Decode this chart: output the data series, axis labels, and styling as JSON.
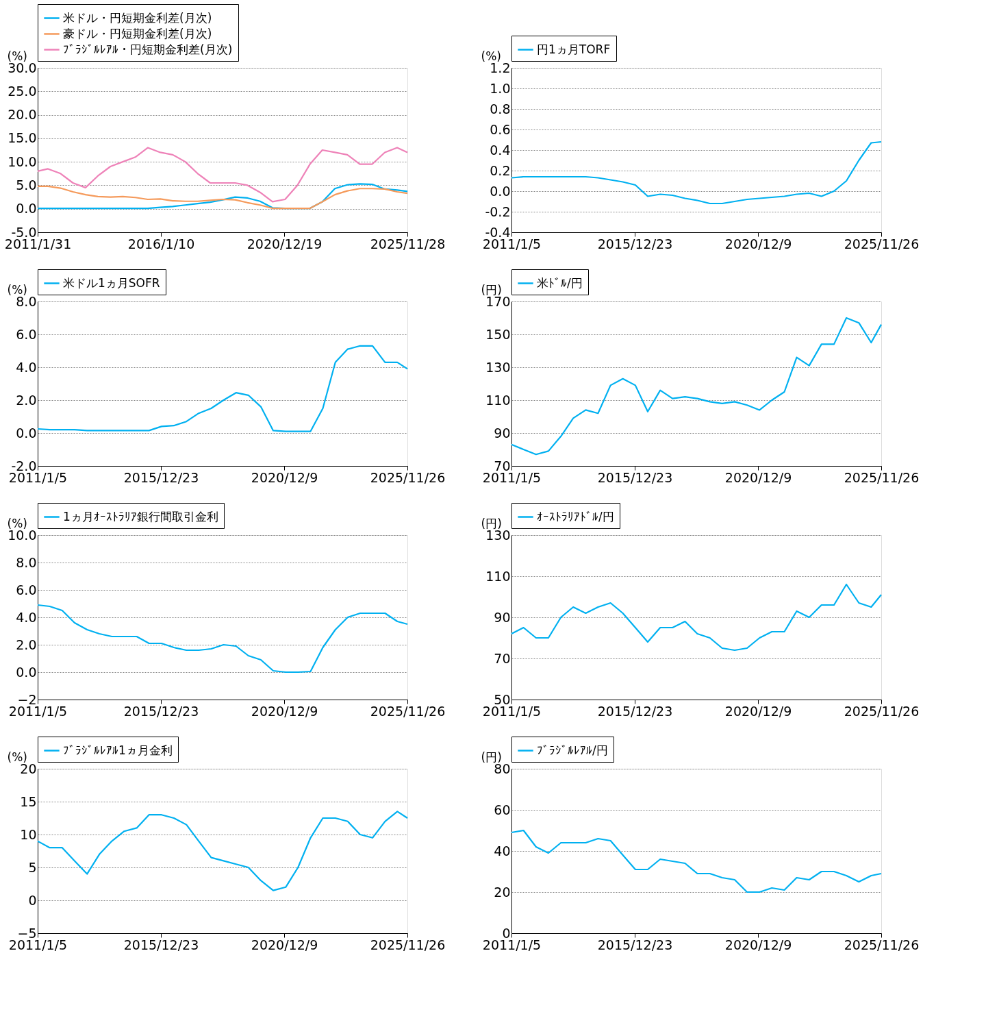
{
  "chart_data": [
    {
      "type": "line",
      "ylabel": "(%)",
      "legend": "top",
      "grid": "y",
      "line_style": "solid",
      "x": [
        "2011-01-31",
        "2011-07-01",
        "2012-01-01",
        "2012-07-01",
        "2013-01-01",
        "2013-07-01",
        "2014-01-01",
        "2014-07-01",
        "2015-01-01",
        "2015-07-01",
        "2016-01-01",
        "2016-07-01",
        "2017-01-01",
        "2017-07-01",
        "2018-01-01",
        "2018-07-01",
        "2019-01-01",
        "2019-07-01",
        "2020-01-01",
        "2020-07-01",
        "2021-01-01",
        "2021-07-01",
        "2022-01-01",
        "2022-07-01",
        "2023-01-01",
        "2023-07-01",
        "2024-01-01",
        "2024-07-01",
        "2025-01-01",
        "2025-07-01",
        "2025-11-28"
      ],
      "xlim": [
        "2011-01-31",
        "2025-11-28"
      ],
      "xticks": [
        {
          "value": "2011-01-31",
          "label": "2011/1/31"
        },
        {
          "value": "2016-01-10",
          "label": "2016/1/10"
        },
        {
          "value": "2020-12-19",
          "label": "2020/12/19"
        },
        {
          "value": "2025-11-28",
          "label": "2025/11/28"
        }
      ],
      "ylim": [
        -5,
        30
      ],
      "yticks": [
        {
          "value": -5,
          "label": "-5.0"
        },
        {
          "value": 0,
          "label": "0.0"
        },
        {
          "value": 5,
          "label": "5.0"
        },
        {
          "value": 10,
          "label": "10.0"
        },
        {
          "value": 15,
          "label": "15.0"
        },
        {
          "value": 20,
          "label": "20.0"
        },
        {
          "value": 25,
          "label": "25.0"
        },
        {
          "value": 30,
          "label": "30.0"
        }
      ],
      "series": [
        {
          "name": "米ドル・円短期金利差(月次)",
          "color": "#00b0f0",
          "values": [
            0.1,
            0.1,
            0.1,
            0.1,
            0.1,
            0.1,
            0.1,
            0.1,
            0.1,
            0.1,
            0.3,
            0.5,
            0.8,
            1.1,
            1.4,
            1.9,
            2.5,
            2.3,
            1.6,
            0.2,
            0.1,
            0.1,
            0.1,
            1.5,
            4.3,
            5.1,
            5.3,
            5.2,
            4.2,
            4.0,
            3.7
          ]
        },
        {
          "name": "豪ドル・円短期金利差(月次)",
          "color": "#f59a5b",
          "values": [
            4.8,
            4.8,
            4.4,
            3.6,
            3.0,
            2.6,
            2.5,
            2.6,
            2.4,
            2.0,
            2.1,
            1.7,
            1.6,
            1.6,
            1.8,
            2.0,
            1.9,
            1.3,
            0.8,
            0.1,
            0.1,
            0.1,
            0.1,
            1.5,
            3.0,
            3.8,
            4.3,
            4.3,
            4.2,
            3.6,
            3.3
          ]
        },
        {
          "name": "ﾌﾞﾗｼﾞﾙﾚｱﾙ・円短期金利差(月次)",
          "color": "#ee82b8",
          "values": [
            8.0,
            8.5,
            7.5,
            5.5,
            4.5,
            7.0,
            9.0,
            10.0,
            11.0,
            13.0,
            12.0,
            11.5,
            10.0,
            7.5,
            5.5,
            5.5,
            5.5,
            5.0,
            3.5,
            1.5,
            2.0,
            5.0,
            9.5,
            12.5,
            12.0,
            11.5,
            9.5,
            9.5,
            12.0,
            13.0,
            12.0
          ]
        }
      ]
    },
    {
      "type": "line",
      "ylabel": "(%)",
      "legend": "top",
      "grid": "y",
      "line_style": "solid",
      "x": [
        "2011-01-05",
        "2011-07-01",
        "2012-01-01",
        "2012-07-01",
        "2013-01-01",
        "2013-07-01",
        "2014-01-01",
        "2014-07-01",
        "2015-01-01",
        "2015-07-01",
        "2016-01-01",
        "2016-07-01",
        "2017-01-01",
        "2017-07-01",
        "2018-01-01",
        "2018-07-01",
        "2019-01-01",
        "2019-07-01",
        "2020-01-01",
        "2020-07-01",
        "2021-01-01",
        "2021-07-01",
        "2022-01-01",
        "2022-07-01",
        "2023-01-01",
        "2023-07-01",
        "2024-01-01",
        "2024-07-01",
        "2025-01-01",
        "2025-07-01",
        "2025-11-26"
      ],
      "xlim": [
        "2011-01-05",
        "2025-11-26"
      ],
      "xticks": [
        {
          "value": "2011-01-05",
          "label": "2011/1/5"
        },
        {
          "value": "2015-12-23",
          "label": "2015/12/23"
        },
        {
          "value": "2020-12-09",
          "label": "2020/12/9"
        },
        {
          "value": "2025-11-26",
          "label": "2025/11/26"
        }
      ],
      "ylim": [
        -0.4,
        1.2
      ],
      "yticks": [
        {
          "value": -0.4,
          "label": "-0.4"
        },
        {
          "value": -0.2,
          "label": "-0.2"
        },
        {
          "value": 0,
          "label": "0.0"
        },
        {
          "value": 0.2,
          "label": "0.2"
        },
        {
          "value": 0.4,
          "label": "0.4"
        },
        {
          "value": 0.6,
          "label": "0.6"
        },
        {
          "value": 0.8,
          "label": "0.8"
        },
        {
          "value": 1.0,
          "label": "1.0"
        },
        {
          "value": 1.2,
          "label": "1.2"
        }
      ],
      "series": [
        {
          "name": "円1ヵ月TORF",
          "color": "#00b0f0",
          "values": [
            0.13,
            0.14,
            0.14,
            0.14,
            0.14,
            0.14,
            0.14,
            0.13,
            0.11,
            0.09,
            0.06,
            -0.05,
            -0.03,
            -0.04,
            -0.07,
            -0.09,
            -0.12,
            -0.12,
            -0.1,
            -0.08,
            -0.07,
            -0.06,
            -0.05,
            -0.03,
            -0.02,
            -0.05,
            0.0,
            0.1,
            0.3,
            0.47,
            0.48
          ]
        }
      ]
    },
    {
      "type": "line",
      "ylabel": "(%)",
      "legend": "top",
      "grid": "y",
      "line_style": "solid",
      "x": [
        "2011-01-05",
        "2011-07-01",
        "2012-01-01",
        "2012-07-01",
        "2013-01-01",
        "2013-07-01",
        "2014-01-01",
        "2014-07-01",
        "2015-01-01",
        "2015-07-01",
        "2016-01-01",
        "2016-07-01",
        "2017-01-01",
        "2017-07-01",
        "2018-01-01",
        "2018-07-01",
        "2019-01-01",
        "2019-07-01",
        "2020-01-01",
        "2020-07-01",
        "2021-01-01",
        "2021-07-01",
        "2022-01-01",
        "2022-07-01",
        "2023-01-01",
        "2023-07-01",
        "2024-01-01",
        "2024-07-01",
        "2025-01-01",
        "2025-07-01",
        "2025-11-26"
      ],
      "xlim": [
        "2011-01-05",
        "2025-11-26"
      ],
      "xticks": [
        {
          "value": "2011-01-05",
          "label": "2011/1/5"
        },
        {
          "value": "2015-12-23",
          "label": "2015/12/23"
        },
        {
          "value": "2020-12-09",
          "label": "2020/12/9"
        },
        {
          "value": "2025-11-26",
          "label": "2025/11/26"
        }
      ],
      "ylim": [
        -2,
        8
      ],
      "yticks": [
        {
          "value": -2,
          "label": "-2.0"
        },
        {
          "value": 0,
          "label": "0.0"
        },
        {
          "value": 2,
          "label": "2.0"
        },
        {
          "value": 4,
          "label": "4.0"
        },
        {
          "value": 6,
          "label": "6.0"
        },
        {
          "value": 8,
          "label": "8.0"
        }
      ],
      "series": [
        {
          "name": "米ドル1ヵ月SOFR",
          "color": "#00b0f0",
          "values": [
            0.25,
            0.2,
            0.2,
            0.2,
            0.15,
            0.15,
            0.15,
            0.15,
            0.15,
            0.15,
            0.4,
            0.45,
            0.7,
            1.2,
            1.5,
            2.0,
            2.45,
            2.3,
            1.6,
            0.15,
            0.1,
            0.1,
            0.1,
            1.5,
            4.3,
            5.1,
            5.3,
            5.3,
            4.3,
            4.3,
            3.9
          ]
        }
      ]
    },
    {
      "type": "line",
      "ylabel": "(円)",
      "legend": "top",
      "grid": "y",
      "line_style": "solid",
      "x": [
        "2011-01-05",
        "2011-07-01",
        "2012-01-01",
        "2012-07-01",
        "2013-01-01",
        "2013-07-01",
        "2014-01-01",
        "2014-07-01",
        "2015-01-01",
        "2015-07-01",
        "2016-01-01",
        "2016-07-01",
        "2017-01-01",
        "2017-07-01",
        "2018-01-01",
        "2018-07-01",
        "2019-01-01",
        "2019-07-01",
        "2020-01-01",
        "2020-07-01",
        "2021-01-01",
        "2021-07-01",
        "2022-01-01",
        "2022-07-01",
        "2023-01-01",
        "2023-07-01",
        "2024-01-01",
        "2024-07-01",
        "2025-01-01",
        "2025-07-01",
        "2025-11-26"
      ],
      "xlim": [
        "2011-01-05",
        "2025-11-26"
      ],
      "xticks": [
        {
          "value": "2011-01-05",
          "label": "2011/1/5"
        },
        {
          "value": "2015-12-23",
          "label": "2015/12/23"
        },
        {
          "value": "2020-12-09",
          "label": "2020/12/9"
        },
        {
          "value": "2025-11-26",
          "label": "2025/11/26"
        }
      ],
      "ylim": [
        70,
        170
      ],
      "yticks": [
        70,
        90,
        110,
        130,
        150,
        170
      ],
      "series": [
        {
          "name": "米ﾄﾞﾙ/円",
          "color": "#00b0f0",
          "values": [
            83,
            80,
            77,
            79,
            88,
            99,
            104,
            102,
            119,
            123,
            119,
            103,
            116,
            111,
            112,
            111,
            109,
            108,
            109,
            107,
            104,
            110,
            115,
            136,
            131,
            144,
            144,
            160,
            157,
            145,
            156
          ]
        }
      ]
    },
    {
      "type": "line",
      "ylabel": "(%)",
      "legend": "top",
      "grid": "y",
      "line_style": "solid",
      "x": [
        "2011-01-05",
        "2011-07-01",
        "2012-01-01",
        "2012-07-01",
        "2013-01-01",
        "2013-07-01",
        "2014-01-01",
        "2014-07-01",
        "2015-01-01",
        "2015-07-01",
        "2016-01-01",
        "2016-07-01",
        "2017-01-01",
        "2017-07-01",
        "2018-01-01",
        "2018-07-01",
        "2019-01-01",
        "2019-07-01",
        "2020-01-01",
        "2020-07-01",
        "2021-01-01",
        "2021-07-01",
        "2022-01-01",
        "2022-07-01",
        "2023-01-01",
        "2023-07-01",
        "2024-01-01",
        "2024-07-01",
        "2025-01-01",
        "2025-07-01",
        "2025-11-26"
      ],
      "xlim": [
        "2011-01-05",
        "2025-11-26"
      ],
      "xticks": [
        {
          "value": "2011-01-05",
          "label": "2011/1/5"
        },
        {
          "value": "2015-12-23",
          "label": "2015/12/23"
        },
        {
          "value": "2020-12-09",
          "label": "2020/12/9"
        },
        {
          "value": "2025-11-26",
          "label": "2025/11/26"
        }
      ],
      "ylim": [
        -2,
        10
      ],
      "yticks": [
        -2,
        {
          "value": 0,
          "label": "0.0"
        },
        {
          "value": 2,
          "label": "2.0"
        },
        {
          "value": 4,
          "label": "4.0"
        },
        {
          "value": 6,
          "label": "6.0"
        },
        {
          "value": 8,
          "label": "8.0"
        },
        {
          "value": 10,
          "label": "10.0"
        }
      ],
      "series": [
        {
          "name": "1ヵ月ｵｰｽﾄﾗﾘｱ銀行間取引金利",
          "color": "#00b0f0",
          "values": [
            4.9,
            4.8,
            4.5,
            3.6,
            3.1,
            2.8,
            2.6,
            2.6,
            2.6,
            2.1,
            2.1,
            1.8,
            1.6,
            1.6,
            1.7,
            2.0,
            1.9,
            1.2,
            0.9,
            0.1,
            0.0,
            0.0,
            0.05,
            1.8,
            3.1,
            4.0,
            4.3,
            4.3,
            4.3,
            3.7,
            3.5
          ]
        }
      ]
    },
    {
      "type": "line",
      "ylabel": "(円)",
      "legend": "top",
      "grid": "y",
      "line_style": "solid",
      "x": [
        "2011-01-05",
        "2011-07-01",
        "2012-01-01",
        "2012-07-01",
        "2013-01-01",
        "2013-07-01",
        "2014-01-01",
        "2014-07-01",
        "2015-01-01",
        "2015-07-01",
        "2016-01-01",
        "2016-07-01",
        "2017-01-01",
        "2017-07-01",
        "2018-01-01",
        "2018-07-01",
        "2019-01-01",
        "2019-07-01",
        "2020-01-01",
        "2020-07-01",
        "2021-01-01",
        "2021-07-01",
        "2022-01-01",
        "2022-07-01",
        "2023-01-01",
        "2023-07-01",
        "2024-01-01",
        "2024-07-01",
        "2025-01-01",
        "2025-07-01",
        "2025-11-26"
      ],
      "xlim": [
        "2011-01-05",
        "2025-11-26"
      ],
      "xticks": [
        {
          "value": "2011-01-05",
          "label": "2011/1/5"
        },
        {
          "value": "2015-12-23",
          "label": "2015/12/23"
        },
        {
          "value": "2020-12-09",
          "label": "2020/12/9"
        },
        {
          "value": "2025-11-26",
          "label": "2025/11/26"
        }
      ],
      "ylim": [
        50,
        130
      ],
      "yticks": [
        50,
        70,
        90,
        110,
        130
      ],
      "series": [
        {
          "name": "ｵｰｽﾄﾗﾘｱﾄﾞﾙ/円",
          "color": "#00b0f0",
          "values": [
            82,
            85,
            80,
            80,
            90,
            95,
            92,
            95,
            97,
            92,
            85,
            78,
            85,
            85,
            88,
            82,
            80,
            75,
            74,
            75,
            80,
            83,
            83,
            93,
            90,
            96,
            96,
            106,
            97,
            95,
            101
          ]
        }
      ]
    },
    {
      "type": "line",
      "ylabel": "(%)",
      "legend": "top",
      "grid": "y",
      "line_style": "solid",
      "x": [
        "2011-01-05",
        "2011-07-01",
        "2012-01-01",
        "2012-07-01",
        "2013-01-01",
        "2013-07-01",
        "2014-01-01",
        "2014-07-01",
        "2015-01-01",
        "2015-07-01",
        "2016-01-01",
        "2016-07-01",
        "2017-01-01",
        "2017-07-01",
        "2018-01-01",
        "2018-07-01",
        "2019-01-01",
        "2019-07-01",
        "2020-01-01",
        "2020-07-01",
        "2021-01-01",
        "2021-07-01",
        "2022-01-01",
        "2022-07-01",
        "2023-01-01",
        "2023-07-01",
        "2024-01-01",
        "2024-07-01",
        "2025-01-01",
        "2025-07-01",
        "2025-11-26"
      ],
      "xlim": [
        "2011-01-05",
        "2025-11-26"
      ],
      "xticks": [
        {
          "value": "2011-01-05",
          "label": "2011/1/5"
        },
        {
          "value": "2015-12-23",
          "label": "2015/12/23"
        },
        {
          "value": "2020-12-09",
          "label": "2020/12/9"
        },
        {
          "value": "2025-11-26",
          "label": "2025/11/26"
        }
      ],
      "ylim": [
        -5,
        20
      ],
      "yticks": [
        -5,
        0,
        5,
        10,
        15,
        20
      ],
      "series": [
        {
          "name": "ﾌﾞﾗｼﾞﾙﾚｱﾙ1ヵ月金利",
          "color": "#00b0f0",
          "values": [
            9,
            8,
            8,
            6,
            4,
            7,
            9,
            10.5,
            11,
            13,
            13,
            12.5,
            11.5,
            9,
            6.5,
            6,
            5.5,
            5,
            3,
            1.5,
            2,
            5,
            9.5,
            12.5,
            12.5,
            12,
            10,
            9.5,
            12,
            13.5,
            12.5
          ]
        }
      ]
    },
    {
      "type": "line",
      "ylabel": "(円)",
      "legend": "top",
      "grid": "y",
      "line_style": "solid",
      "x": [
        "2011-01-05",
        "2011-07-01",
        "2012-01-01",
        "2012-07-01",
        "2013-01-01",
        "2013-07-01",
        "2014-01-01",
        "2014-07-01",
        "2015-01-01",
        "2015-07-01",
        "2016-01-01",
        "2016-07-01",
        "2017-01-01",
        "2017-07-01",
        "2018-01-01",
        "2018-07-01",
        "2019-01-01",
        "2019-07-01",
        "2020-01-01",
        "2020-07-01",
        "2021-01-01",
        "2021-07-01",
        "2022-01-01",
        "2022-07-01",
        "2023-01-01",
        "2023-07-01",
        "2024-01-01",
        "2024-07-01",
        "2025-01-01",
        "2025-07-01",
        "2025-11-26"
      ],
      "xlim": [
        "2011-01-05",
        "2025-11-26"
      ],
      "xticks": [
        {
          "value": "2011-01-05",
          "label": "2011/1/5"
        },
        {
          "value": "2015-12-23",
          "label": "2015/12/23"
        },
        {
          "value": "2020-12-09",
          "label": "2020/12/9"
        },
        {
          "value": "2025-11-26",
          "label": "2025/11/26"
        }
      ],
      "ylim": [
        0,
        80
      ],
      "yticks": [
        0,
        20,
        40,
        60,
        80
      ],
      "series": [
        {
          "name": "ﾌﾞﾗｼﾞﾙﾚｱﾙ/円",
          "color": "#00b0f0",
          "values": [
            49,
            50,
            42,
            39,
            44,
            44,
            44,
            46,
            45,
            38,
            31,
            31,
            36,
            35,
            34,
            29,
            29,
            27,
            26,
            20,
            20,
            22,
            21,
            27,
            26,
            30,
            30,
            28,
            25,
            28,
            29
          ]
        }
      ]
    }
  ]
}
